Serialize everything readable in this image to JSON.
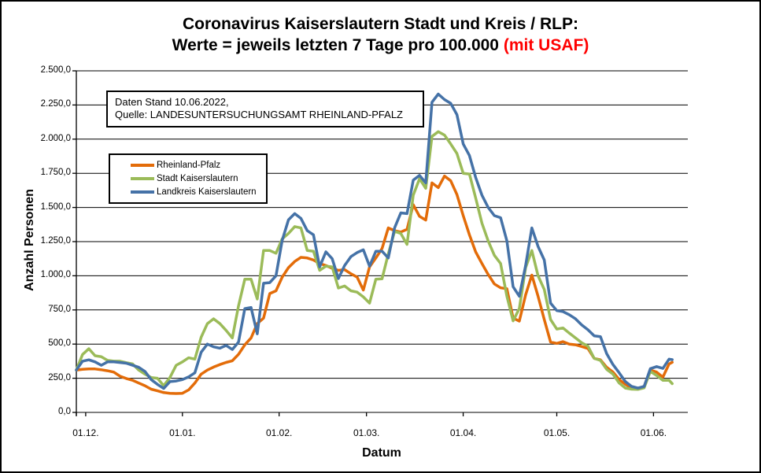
{
  "title": {
    "line1": "Coronavirus Kaiserslautern Stadt und Kreis / RLP:",
    "line2_black": "Werte = jeweils letzten 7 Tage pro 100.000 ",
    "line2_red": "(mit USAF)"
  },
  "annotation": {
    "line1": "Daten Stand 10.06.2022,",
    "line2": "Quelle: LANDESUNTERSUCHUNGSAMT RHEINLAND-PFALZ"
  },
  "legend": [
    {
      "label": "Rheinland-Pfalz",
      "color": "#E36C09"
    },
    {
      "label": "Stadt Kaiserslautern",
      "color": "#9BBB59"
    },
    {
      "label": "Landkreis Kaiserslautern",
      "color": "#4572A7"
    }
  ],
  "axes": {
    "y_label": "Anzahl Personen",
    "x_label": "Datum"
  },
  "chart_data": {
    "type": "line",
    "title": "Coronavirus Kaiserslautern Stadt und Kreis / RLP: Werte = jeweils letzten 7 Tage pro 100.000 (mit USAF)",
    "xlabel": "Datum",
    "ylabel": "Anzahl Personen",
    "ylim": [
      0,
      2500
    ],
    "y_tick_step": 250,
    "grid": true,
    "legend_position": "inside-top-left",
    "x_domain_days": [
      0,
      196
    ],
    "x_ticks": [
      {
        "day": 3,
        "label": "01.12."
      },
      {
        "day": 34,
        "label": "01.01."
      },
      {
        "day": 65,
        "label": "01.02."
      },
      {
        "day": 93,
        "label": "01.03."
      },
      {
        "day": 124,
        "label": "01.04."
      },
      {
        "day": 154,
        "label": "01.05."
      },
      {
        "day": 185,
        "label": "01.06."
      }
    ],
    "y_ticks": [
      {
        "value": 2500,
        "label": "2.500,0"
      },
      {
        "value": 2250,
        "label": "2.250,0"
      },
      {
        "value": 2000,
        "label": "2.000,0"
      },
      {
        "value": 1750,
        "label": "1.750,0"
      },
      {
        "value": 1500,
        "label": "1.500,0"
      },
      {
        "value": 1250,
        "label": "1.250,0"
      },
      {
        "value": 1000,
        "label": "1.000,0"
      },
      {
        "value": 750,
        "label": "750,0"
      },
      {
        "value": 500,
        "label": "500,0"
      },
      {
        "value": 250,
        "label": "250,0"
      },
      {
        "value": 0,
        "label": "0,0"
      }
    ],
    "x_days": [
      0,
      2,
      4,
      6,
      8,
      10,
      12,
      14,
      16,
      18,
      20,
      22,
      24,
      26,
      28,
      30,
      32,
      34,
      36,
      38,
      40,
      42,
      44,
      46,
      48,
      50,
      52,
      54,
      56,
      58,
      60,
      62,
      64,
      66,
      68,
      70,
      72,
      74,
      76,
      78,
      80,
      82,
      84,
      86,
      88,
      90,
      92,
      94,
      96,
      98,
      100,
      102,
      104,
      106,
      108,
      110,
      112,
      114,
      116,
      118,
      120,
      122,
      124,
      126,
      128,
      130,
      132,
      134,
      136,
      138,
      140,
      142,
      144,
      146,
      148,
      150,
      152,
      154,
      156,
      158,
      160,
      162,
      164,
      166,
      168,
      170,
      172,
      174,
      176,
      178,
      180,
      182,
      184,
      186,
      188,
      190,
      191
    ],
    "series": [
      {
        "name": "Rheinland-Pfalz",
        "color": "#E36C09",
        "values": [
          310,
          315,
          318,
          318,
          312,
          305,
          295,
          265,
          248,
          235,
          215,
          195,
          170,
          158,
          145,
          140,
          138,
          140,
          165,
          215,
          280,
          310,
          332,
          350,
          366,
          378,
          425,
          495,
          545,
          650,
          690,
          870,
          890,
          990,
          1060,
          1105,
          1135,
          1130,
          1115,
          1090,
          1075,
          1055,
          1040,
          1045,
          1015,
          990,
          895,
          1065,
          1130,
          1200,
          1350,
          1330,
          1320,
          1340,
          1520,
          1435,
          1408,
          1680,
          1645,
          1730,
          1695,
          1595,
          1440,
          1300,
          1175,
          1090,
          1010,
          940,
          912,
          905,
          690,
          668,
          860,
          1005,
          850,
          680,
          515,
          505,
          518,
          500,
          495,
          482,
          468,
          395,
          385,
          330,
          295,
          240,
          205,
          178,
          172,
          190,
          310,
          295,
          258,
          355,
          367
        ]
      },
      {
        "name": "Stadt Kaiserslautern",
        "color": "#9BBB59",
        "values": [
          310,
          424,
          466,
          415,
          408,
          381,
          375,
          375,
          364,
          355,
          310,
          280,
          255,
          250,
          195,
          255,
          345,
          370,
          400,
          390,
          550,
          650,
          685,
          650,
          600,
          545,
          780,
          975,
          975,
          830,
          1185,
          1185,
          1165,
          1270,
          1310,
          1360,
          1350,
          1185,
          1180,
          1040,
          1070,
          1065,
          910,
          925,
          890,
          880,
          845,
          800,
          975,
          978,
          1160,
          1325,
          1310,
          1230,
          1590,
          1710,
          1640,
          2020,
          2055,
          2030,
          1965,
          1895,
          1750,
          1745,
          1570,
          1385,
          1255,
          1150,
          1090,
          850,
          670,
          760,
          1060,
          1185,
          1000,
          900,
          680,
          610,
          618,
          580,
          545,
          510,
          485,
          395,
          380,
          315,
          280,
          215,
          178,
          170,
          168,
          180,
          300,
          270,
          235,
          235,
          210
        ]
      },
      {
        "name": "Landkreis Kaiserslautern",
        "color": "#4572A7",
        "values": [
          310,
          375,
          385,
          370,
          345,
          370,
          370,
          365,
          360,
          345,
          330,
          300,
          240,
          205,
          175,
          225,
          230,
          240,
          260,
          290,
          440,
          500,
          480,
          470,
          490,
          460,
          515,
          760,
          768,
          575,
          945,
          950,
          1000,
          1260,
          1410,
          1455,
          1420,
          1330,
          1300,
          1065,
          1175,
          1125,
          980,
          1075,
          1140,
          1170,
          1190,
          1070,
          1180,
          1180,
          1130,
          1350,
          1460,
          1455,
          1700,
          1735,
          1680,
          2270,
          2330,
          2290,
          2262,
          2180,
          1965,
          1880,
          1720,
          1590,
          1500,
          1440,
          1425,
          1255,
          920,
          850,
          1075,
          1350,
          1215,
          1115,
          800,
          745,
          738,
          715,
          685,
          640,
          605,
          560,
          555,
          430,
          350,
          290,
          225,
          190,
          178,
          190,
          320,
          335,
          322,
          390,
          386
        ]
      }
    ]
  }
}
